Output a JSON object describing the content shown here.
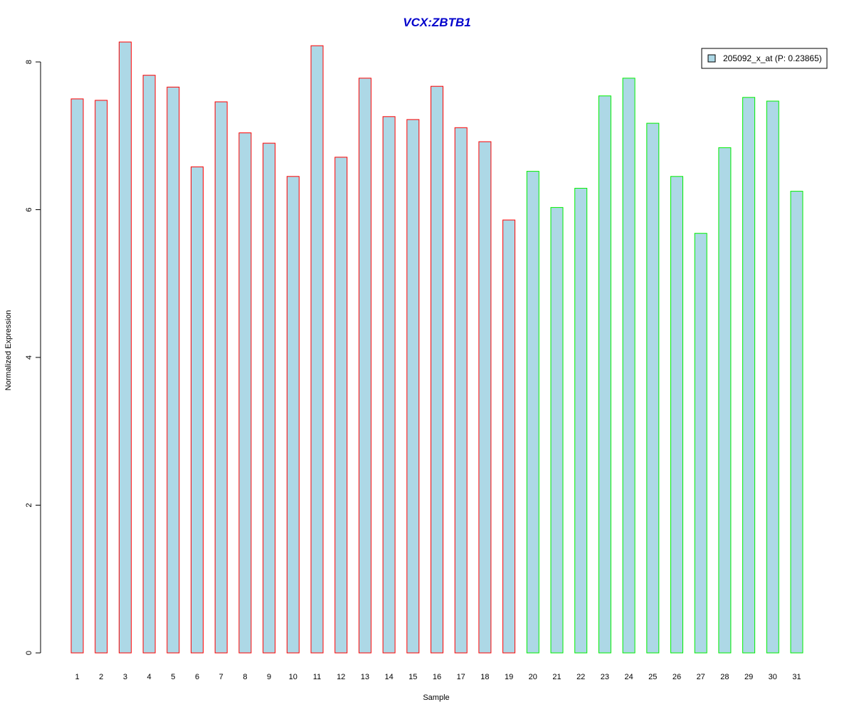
{
  "chart_data": {
    "type": "bar",
    "title": "VCX:ZBTB1",
    "xlabel": "Sample",
    "ylabel": "Normalized Expression",
    "ylim": [
      0,
      8.3
    ],
    "yticks": [
      0,
      2,
      4,
      6,
      8
    ],
    "grid": false,
    "legend_position": "top-right",
    "categories": [
      "1",
      "2",
      "3",
      "4",
      "5",
      "6",
      "7",
      "8",
      "9",
      "10",
      "11",
      "12",
      "13",
      "14",
      "15",
      "16",
      "17",
      "18",
      "19",
      "20",
      "21",
      "22",
      "23",
      "24",
      "25",
      "26",
      "27",
      "28",
      "29",
      "30",
      "31"
    ],
    "series": [
      {
        "name": "205092_x_at (P: 0.23865)",
        "values": [
          7.5,
          7.48,
          8.27,
          7.82,
          7.66,
          6.58,
          7.46,
          7.04,
          6.9,
          6.45,
          8.22,
          6.71,
          7.78,
          7.26,
          7.22,
          7.67,
          7.11,
          6.92,
          5.86,
          6.52,
          6.03,
          6.29,
          7.54,
          7.78,
          7.17,
          6.45,
          5.68,
          6.84,
          7.52,
          7.47,
          6.25
        ]
      }
    ],
    "groups": [
      "red",
      "red",
      "red",
      "red",
      "red",
      "red",
      "red",
      "red",
      "red",
      "red",
      "red",
      "red",
      "red",
      "red",
      "red",
      "red",
      "red",
      "red",
      "red",
      "green",
      "green",
      "green",
      "green",
      "green",
      "green",
      "green",
      "green",
      "green",
      "green",
      "green",
      "green"
    ]
  },
  "colors": {
    "bar_fill": "#add8e6",
    "group_red": "#ff0000",
    "group_green": "#00ee00",
    "title": "#0000cc",
    "axis": "#000000"
  }
}
